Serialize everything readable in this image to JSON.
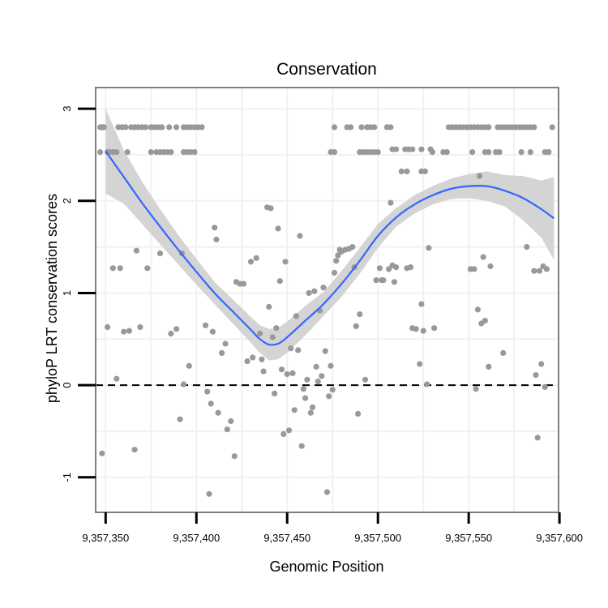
{
  "chart_data": {
    "type": "scatter",
    "title": "Conservation",
    "xlabel": "Genomic Position",
    "ylabel": "phyloP LRT conservation scores",
    "xlim": [
      9357344.5,
      9357599.5
    ],
    "ylim": [
      -1.38,
      3.23
    ],
    "x_ticks": [
      9357350,
      9357400,
      9357450,
      9357500,
      9357550,
      9357600
    ],
    "x_tick_labels": [
      "9,357,350",
      "9,357,400",
      "9,357,450",
      "9,357,500",
      "9,357,550",
      "9,357,600"
    ],
    "y_ticks": [
      -1,
      0,
      1,
      2,
      3
    ],
    "y_tick_labels": [
      "-1",
      "0",
      "1",
      "2",
      "3"
    ],
    "reference_line": {
      "y": 0,
      "style": "dashed",
      "color": "#000000"
    },
    "point_color": "#999999",
    "smooth_color": "#3366ff",
    "ribbon_color": "#d4d4d4",
    "points": [
      {
        "x": 9357347,
        "y": 2.8
      },
      {
        "x": 9357348,
        "y": 2.8
      },
      {
        "x": 9357349,
        "y": 2.8
      },
      {
        "x": 9357347,
        "y": 2.53
      },
      {
        "x": 9357351,
        "y": 2.53
      },
      {
        "x": 9357352,
        "y": 2.53
      },
      {
        "x": 9357354,
        "y": 2.53
      },
      {
        "x": 9357356,
        "y": 2.53
      },
      {
        "x": 9357362,
        "y": 2.53
      },
      {
        "x": 9357357,
        "y": 2.8
      },
      {
        "x": 9357359,
        "y": 2.8
      },
      {
        "x": 9357361,
        "y": 2.8
      },
      {
        "x": 9357364,
        "y": 2.8
      },
      {
        "x": 9357366,
        "y": 2.8
      },
      {
        "x": 9357368,
        "y": 2.8
      },
      {
        "x": 9357370,
        "y": 2.8
      },
      {
        "x": 9357372,
        "y": 2.8
      },
      {
        "x": 9357375,
        "y": 2.8
      },
      {
        "x": 9357377,
        "y": 2.8
      },
      {
        "x": 9357379,
        "y": 2.8
      },
      {
        "x": 9357381,
        "y": 2.8
      },
      {
        "x": 9357385,
        "y": 2.8
      },
      {
        "x": 9357389,
        "y": 2.8
      },
      {
        "x": 9357393,
        "y": 2.8
      },
      {
        "x": 9357395,
        "y": 2.8
      },
      {
        "x": 9357397,
        "y": 2.8
      },
      {
        "x": 9357399,
        "y": 2.8
      },
      {
        "x": 9357401,
        "y": 2.8
      },
      {
        "x": 9357403,
        "y": 2.8
      },
      {
        "x": 9357375,
        "y": 2.53
      },
      {
        "x": 9357378,
        "y": 2.53
      },
      {
        "x": 9357380,
        "y": 2.53
      },
      {
        "x": 9357382,
        "y": 2.53
      },
      {
        "x": 9357384,
        "y": 2.53
      },
      {
        "x": 9357386,
        "y": 2.53
      },
      {
        "x": 9357393,
        "y": 2.53
      },
      {
        "x": 9357395,
        "y": 2.53
      },
      {
        "x": 9357397,
        "y": 2.53
      },
      {
        "x": 9357399,
        "y": 2.53
      },
      {
        "x": 9357476,
        "y": 2.8
      },
      {
        "x": 9357483,
        "y": 2.8
      },
      {
        "x": 9357485,
        "y": 2.8
      },
      {
        "x": 9357491,
        "y": 2.8
      },
      {
        "x": 9357494,
        "y": 2.8
      },
      {
        "x": 9357496,
        "y": 2.8
      },
      {
        "x": 9357498,
        "y": 2.8
      },
      {
        "x": 9357505,
        "y": 2.8
      },
      {
        "x": 9357507,
        "y": 2.8
      },
      {
        "x": 9357474,
        "y": 2.53
      },
      {
        "x": 9357476,
        "y": 2.53
      },
      {
        "x": 9357490,
        "y": 2.53
      },
      {
        "x": 9357492,
        "y": 2.53
      },
      {
        "x": 9357494,
        "y": 2.53
      },
      {
        "x": 9357496,
        "y": 2.53
      },
      {
        "x": 9357498,
        "y": 2.53
      },
      {
        "x": 9357500,
        "y": 2.53
      },
      {
        "x": 9357508,
        "y": 2.56
      },
      {
        "x": 9357510,
        "y": 2.56
      },
      {
        "x": 9357515,
        "y": 2.56
      },
      {
        "x": 9357517,
        "y": 2.56
      },
      {
        "x": 9357519,
        "y": 2.56
      },
      {
        "x": 9357524,
        "y": 2.56
      },
      {
        "x": 9357529,
        "y": 2.56
      },
      {
        "x": 9357513,
        "y": 2.32
      },
      {
        "x": 9357516,
        "y": 2.32
      },
      {
        "x": 9357524,
        "y": 2.32
      },
      {
        "x": 9357526,
        "y": 2.32
      },
      {
        "x": 9357530,
        "y": 2.53
      },
      {
        "x": 9357536,
        "y": 2.53
      },
      {
        "x": 9357538,
        "y": 2.53
      },
      {
        "x": 9357539,
        "y": 2.8
      },
      {
        "x": 9357541,
        "y": 2.8
      },
      {
        "x": 9357543,
        "y": 2.8
      },
      {
        "x": 9357545,
        "y": 2.8
      },
      {
        "x": 9357547,
        "y": 2.8
      },
      {
        "x": 9357549,
        "y": 2.8
      },
      {
        "x": 9357551,
        "y": 2.8
      },
      {
        "x": 9357553,
        "y": 2.8
      },
      {
        "x": 9357555,
        "y": 2.8
      },
      {
        "x": 9357557,
        "y": 2.8
      },
      {
        "x": 9357559,
        "y": 2.8
      },
      {
        "x": 9357561,
        "y": 2.8
      },
      {
        "x": 9357566,
        "y": 2.8
      },
      {
        "x": 9357568,
        "y": 2.8
      },
      {
        "x": 9357570,
        "y": 2.8
      },
      {
        "x": 9357572,
        "y": 2.8
      },
      {
        "x": 9357574,
        "y": 2.8
      },
      {
        "x": 9357576,
        "y": 2.8
      },
      {
        "x": 9357578,
        "y": 2.8
      },
      {
        "x": 9357580,
        "y": 2.8
      },
      {
        "x": 9357582,
        "y": 2.8
      },
      {
        "x": 9357584,
        "y": 2.8
      },
      {
        "x": 9357586,
        "y": 2.8
      },
      {
        "x": 9357596,
        "y": 2.8
      },
      {
        "x": 9357552,
        "y": 2.53
      },
      {
        "x": 9357559,
        "y": 2.53
      },
      {
        "x": 9357561,
        "y": 2.53
      },
      {
        "x": 9357565,
        "y": 2.53
      },
      {
        "x": 9357567,
        "y": 2.53
      },
      {
        "x": 9357579,
        "y": 2.53
      },
      {
        "x": 9357584,
        "y": 2.53
      },
      {
        "x": 9357592,
        "y": 2.53
      },
      {
        "x": 9357594,
        "y": 2.53
      },
      {
        "x": 9357556,
        "y": 2.27
      },
      {
        "x": 9357348,
        "y": -0.74
      },
      {
        "x": 9357351,
        "y": 0.63
      },
      {
        "x": 9357354,
        "y": 1.27
      },
      {
        "x": 9357356,
        "y": 0.07
      },
      {
        "x": 9357358,
        "y": 1.27
      },
      {
        "x": 9357360,
        "y": 0.58
      },
      {
        "x": 9357363,
        "y": 0.59
      },
      {
        "x": 9357366,
        "y": -0.7
      },
      {
        "x": 9357367,
        "y": 1.46
      },
      {
        "x": 9357369,
        "y": 0.63
      },
      {
        "x": 9357373,
        "y": 1.27
      },
      {
        "x": 9357380,
        "y": 1.43
      },
      {
        "x": 9357386,
        "y": 0.56
      },
      {
        "x": 9357389,
        "y": 0.61
      },
      {
        "x": 9357391,
        "y": -0.37
      },
      {
        "x": 9357392,
        "y": 1.43
      },
      {
        "x": 9357393,
        "y": 0.01
      },
      {
        "x": 9357396,
        "y": 0.21
      },
      {
        "x": 9357405,
        "y": 0.65
      },
      {
        "x": 9357406,
        "y": -0.07
      },
      {
        "x": 9357407,
        "y": -1.18
      },
      {
        "x": 9357408,
        "y": -0.2
      },
      {
        "x": 9357409,
        "y": 0.58
      },
      {
        "x": 9357410,
        "y": 1.71
      },
      {
        "x": 9357411,
        "y": 1.58
      },
      {
        "x": 9357412,
        "y": -0.3
      },
      {
        "x": 9357414,
        "y": 0.35
      },
      {
        "x": 9357416,
        "y": 0.45
      },
      {
        "x": 9357417,
        "y": -0.48
      },
      {
        "x": 9357419,
        "y": -0.39
      },
      {
        "x": 9357421,
        "y": -0.77
      },
      {
        "x": 9357422,
        "y": 1.12
      },
      {
        "x": 9357424,
        "y": 1.1
      },
      {
        "x": 9357426,
        "y": 1.1
      },
      {
        "x": 9357428,
        "y": 0.26
      },
      {
        "x": 9357430,
        "y": 1.34
      },
      {
        "x": 9357431,
        "y": 0.3
      },
      {
        "x": 9357433,
        "y": 1.38
      },
      {
        "x": 9357435,
        "y": 0.56
      },
      {
        "x": 9357436,
        "y": 0.28
      },
      {
        "x": 9357437,
        "y": 0.15
      },
      {
        "x": 9357439,
        "y": 1.93
      },
      {
        "x": 9357440,
        "y": 0.85
      },
      {
        "x": 9357441,
        "y": 1.92
      },
      {
        "x": 9357442,
        "y": 0.52
      },
      {
        "x": 9357443,
        "y": -0.09
      },
      {
        "x": 9357444,
        "y": 0.62
      },
      {
        "x": 9357445,
        "y": 1.7
      },
      {
        "x": 9357446,
        "y": 1.13
      },
      {
        "x": 9357447,
        "y": 0.17
      },
      {
        "x": 9357448,
        "y": -0.53
      },
      {
        "x": 9357449,
        "y": 1.34
      },
      {
        "x": 9357450,
        "y": 0.12
      },
      {
        "x": 9357451,
        "y": -0.49
      },
      {
        "x": 9357452,
        "y": 0.4
      },
      {
        "x": 9357453,
        "y": 0.13
      },
      {
        "x": 9357454,
        "y": -0.27
      },
      {
        "x": 9357455,
        "y": 0.75
      },
      {
        "x": 9357456,
        "y": 0.38
      },
      {
        "x": 9357457,
        "y": 1.62
      },
      {
        "x": 9357458,
        "y": -0.66
      },
      {
        "x": 9357459,
        "y": -0.04
      },
      {
        "x": 9357460,
        "y": -0.14
      },
      {
        "x": 9357461,
        "y": 0.06
      },
      {
        "x": 9357462,
        "y": 1.0
      },
      {
        "x": 9357463,
        "y": -0.3
      },
      {
        "x": 9357464,
        "y": -0.24
      },
      {
        "x": 9357465,
        "y": 1.02
      },
      {
        "x": 9357466,
        "y": 0.2
      },
      {
        "x": 9357467,
        "y": 0.04
      },
      {
        "x": 9357468,
        "y": 0.81
      },
      {
        "x": 9357469,
        "y": 0.1
      },
      {
        "x": 9357470,
        "y": 1.06
      },
      {
        "x": 9357471,
        "y": 0.37
      },
      {
        "x": 9357472,
        "y": -1.16
      },
      {
        "x": 9357473,
        "y": -0.12
      },
      {
        "x": 9357474,
        "y": 0.21
      },
      {
        "x": 9357475,
        "y": -0.05
      },
      {
        "x": 9357476,
        "y": 1.22
      },
      {
        "x": 9357477,
        "y": 1.35
      },
      {
        "x": 9357478,
        "y": 1.41
      },
      {
        "x": 9357479,
        "y": 1.47
      },
      {
        "x": 9357480,
        "y": 1.45
      },
      {
        "x": 9357482,
        "y": 1.47
      },
      {
        "x": 9357484,
        "y": 1.48
      },
      {
        "x": 9357486,
        "y": 1.5
      },
      {
        "x": 9357487,
        "y": 1.28
      },
      {
        "x": 9357488,
        "y": 0.64
      },
      {
        "x": 9357489,
        "y": -0.31
      },
      {
        "x": 9357490,
        "y": 0.77
      },
      {
        "x": 9357493,
        "y": 0.06
      },
      {
        "x": 9357499,
        "y": 1.14
      },
      {
        "x": 9357501,
        "y": 1.27
      },
      {
        "x": 9357502,
        "y": 1.14
      },
      {
        "x": 9357503,
        "y": 1.14
      },
      {
        "x": 9357506,
        "y": 1.26
      },
      {
        "x": 9357507,
        "y": 1.98
      },
      {
        "x": 9357508,
        "y": 1.3
      },
      {
        "x": 9357509,
        "y": 1.12
      },
      {
        "x": 9357510,
        "y": 1.28
      },
      {
        "x": 9357516,
        "y": 1.27
      },
      {
        "x": 9357518,
        "y": 1.28
      },
      {
        "x": 9357519,
        "y": 0.62
      },
      {
        "x": 9357521,
        "y": 0.61
      },
      {
        "x": 9357523,
        "y": 0.23
      },
      {
        "x": 9357524,
        "y": 0.88
      },
      {
        "x": 9357525,
        "y": 0.59
      },
      {
        "x": 9357527,
        "y": 0.01
      },
      {
        "x": 9357528,
        "y": 1.49
      },
      {
        "x": 9357531,
        "y": 0.62
      },
      {
        "x": 9357551,
        "y": 1.26
      },
      {
        "x": 9357553,
        "y": 1.26
      },
      {
        "x": 9357554,
        "y": -0.04
      },
      {
        "x": 9357555,
        "y": 0.82
      },
      {
        "x": 9357557,
        "y": 0.67
      },
      {
        "x": 9357558,
        "y": 1.39
      },
      {
        "x": 9357559,
        "y": 0.7
      },
      {
        "x": 9357561,
        "y": 0.2
      },
      {
        "x": 9357562,
        "y": 1.29
      },
      {
        "x": 9357569,
        "y": 0.35
      },
      {
        "x": 9357582,
        "y": 1.5
      },
      {
        "x": 9357586,
        "y": 1.24
      },
      {
        "x": 9357587,
        "y": 0.11
      },
      {
        "x": 9357588,
        "y": -0.57
      },
      {
        "x": 9357589,
        "y": 1.24
      },
      {
        "x": 9357590,
        "y": 0.23
      },
      {
        "x": 9357591,
        "y": 1.29
      },
      {
        "x": 9357592,
        "y": -0.02
      },
      {
        "x": 9357593,
        "y": 1.26
      },
      {
        "x": 9357594,
        "y": 2.53
      }
    ],
    "smooth": {
      "x": [
        9357350,
        9357360,
        9357370,
        9357380,
        9357390,
        9357400,
        9357410,
        9357420,
        9357430,
        9357435,
        9357440,
        9357445,
        9357450,
        9357460,
        9357470,
        9357480,
        9357490,
        9357500,
        9357510,
        9357520,
        9357530,
        9357540,
        9357550,
        9357560,
        9357570,
        9357580,
        9357590,
        9357597
      ],
      "fit": [
        2.54,
        2.26,
        1.98,
        1.72,
        1.47,
        1.23,
        1.0,
        0.8,
        0.6,
        0.5,
        0.44,
        0.45,
        0.52,
        0.7,
        0.88,
        1.1,
        1.35,
        1.62,
        1.82,
        1.96,
        2.06,
        2.13,
        2.16,
        2.16,
        2.11,
        2.03,
        1.91,
        1.81
      ],
      "lower": [
        2.08,
        1.97,
        1.75,
        1.53,
        1.31,
        1.09,
        0.88,
        0.67,
        0.46,
        0.35,
        0.27,
        0.28,
        0.35,
        0.54,
        0.75,
        0.96,
        1.21,
        1.49,
        1.72,
        1.86,
        1.96,
        2.02,
        2.03,
        2.0,
        1.94,
        1.79,
        1.6,
        1.36
      ],
      "upper": [
        3.0,
        2.55,
        2.21,
        1.91,
        1.63,
        1.37,
        1.12,
        0.93,
        0.74,
        0.65,
        0.61,
        0.62,
        0.69,
        0.86,
        1.01,
        1.24,
        1.49,
        1.75,
        1.92,
        2.06,
        2.16,
        2.24,
        2.29,
        2.32,
        2.28,
        2.27,
        2.22,
        2.26
      ]
    }
  }
}
